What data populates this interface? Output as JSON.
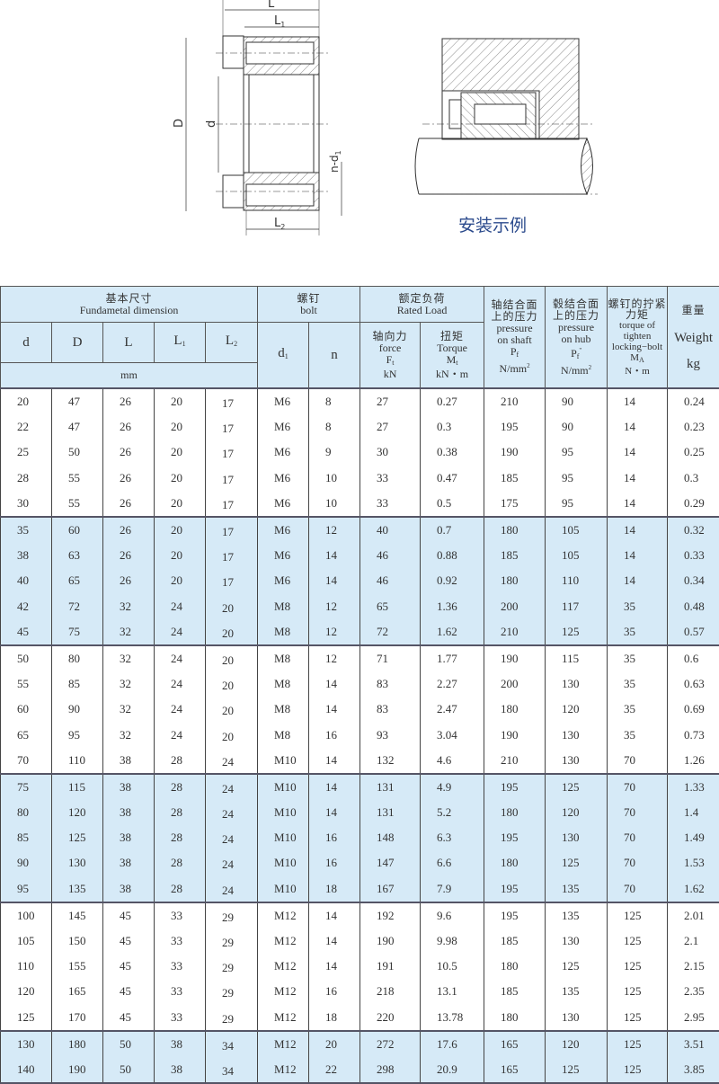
{
  "drawing": {
    "labels": {
      "L": "L",
      "L1": "L",
      "L1_sub": "1",
      "L2": "L",
      "L2_sub": "2",
      "D": "D",
      "d": "d",
      "nd1": "n-d",
      "nd1_sub": "1"
    },
    "caption": "安装示例",
    "caption_color": "#2b4a8c"
  },
  "colors": {
    "header_bg": "#d6eaf7",
    "band_bg": "#d6eaf7",
    "border": "#444444"
  },
  "table": {
    "header": {
      "fundamental_zh": "基本尺寸",
      "fundamental_en": "Fundametal dimension",
      "bolt_zh": "螺钉",
      "bolt_en": "bolt",
      "rated_zh": "额定负荷",
      "rated_en": "Rated Load",
      "cols": {
        "d": "d",
        "D": "D",
        "L": "L",
        "L1": "L",
        "L1_sub": "1",
        "L2": "L",
        "L2_sub": "2",
        "d1": "d",
        "d1_sub": "1",
        "n": "n"
      },
      "mm": "mm",
      "force": {
        "zh": "轴向力",
        "en": "force",
        "sym": "F",
        "sub": "t",
        "unit": "kN"
      },
      "torque": {
        "zh": "扭矩",
        "en": "Torque",
        "sym": "M",
        "sub": "t",
        "unit": "kN・m"
      },
      "p_shaft": {
        "zh1": "轴结合面",
        "zh2": "上的压力",
        "en1": "pressure",
        "en2": "on  shaft",
        "sym": "P",
        "sub": "f",
        "unit": "N/mm",
        "unit_sup": "2"
      },
      "p_hub": {
        "zh1": "毂结合面",
        "zh2": "上的压力",
        "en1": "pressure",
        "en2": "on hub",
        "sym": "P",
        "sub": "f",
        "sup": "''",
        "unit": "N/mm",
        "unit_sup": "2"
      },
      "bolt_torque": {
        "zh1": "螺钉的拧紧",
        "zh2": "力矩",
        "en1": "torque of",
        "en2": "tighten",
        "en3": "locking−bolt",
        "sym": "M",
        "sub": "A",
        "unit": "N・m"
      },
      "weight": {
        "zh": "重量",
        "en": "Weight",
        "unit": "kg"
      }
    },
    "groups": [
      [
        [
          "20",
          "47",
          "26",
          "20",
          "17",
          "M6",
          "8",
          "27",
          "0.27",
          "210",
          "90",
          "14",
          "0.24"
        ],
        [
          "22",
          "47",
          "26",
          "20",
          "17",
          "M6",
          "8",
          "27",
          "0.3",
          "195",
          "90",
          "14",
          "0.23"
        ],
        [
          "25",
          "50",
          "26",
          "20",
          "17",
          "M6",
          "9",
          "30",
          "0.38",
          "190",
          "95",
          "14",
          "0.25"
        ],
        [
          "28",
          "55",
          "26",
          "20",
          "17",
          "M6",
          "10",
          "33",
          "0.47",
          "185",
          "95",
          "14",
          "0.3"
        ],
        [
          "30",
          "55",
          "26",
          "20",
          "17",
          "M6",
          "10",
          "33",
          "0.5",
          "175",
          "95",
          "14",
          "0.29"
        ]
      ],
      [
        [
          "35",
          "60",
          "26",
          "20",
          "17",
          "M6",
          "12",
          "40",
          "0.7",
          "180",
          "105",
          "14",
          "0.32"
        ],
        [
          "38",
          "63",
          "26",
          "20",
          "17",
          "M6",
          "14",
          "46",
          "0.88",
          "185",
          "105",
          "14",
          "0.33"
        ],
        [
          "40",
          "65",
          "26",
          "20",
          "17",
          "M6",
          "14",
          "46",
          "0.92",
          "180",
          "110",
          "14",
          "0.34"
        ],
        [
          "42",
          "72",
          "32",
          "24",
          "20",
          "M8",
          "12",
          "65",
          "1.36",
          "200",
          "117",
          "35",
          "0.48"
        ],
        [
          "45",
          "75",
          "32",
          "24",
          "20",
          "M8",
          "12",
          "72",
          "1.62",
          "210",
          "125",
          "35",
          "0.57"
        ]
      ],
      [
        [
          "50",
          "80",
          "32",
          "24",
          "20",
          "M8",
          "12",
          "71",
          "1.77",
          "190",
          "115",
          "35",
          "0.6"
        ],
        [
          "55",
          "85",
          "32",
          "24",
          "20",
          "M8",
          "14",
          "83",
          "2.27",
          "200",
          "130",
          "35",
          "0.63"
        ],
        [
          "60",
          "90",
          "32",
          "24",
          "20",
          "M8",
          "14",
          "83",
          "2.47",
          "180",
          "120",
          "35",
          "0.69"
        ],
        [
          "65",
          "95",
          "32",
          "24",
          "20",
          "M8",
          "16",
          "93",
          "3.04",
          "190",
          "130",
          "35",
          "0.73"
        ],
        [
          "70",
          "110",
          "38",
          "28",
          "24",
          "M10",
          "14",
          "132",
          "4.6",
          "210",
          "130",
          "70",
          "1.26"
        ]
      ],
      [
        [
          "75",
          "115",
          "38",
          "28",
          "24",
          "M10",
          "14",
          "131",
          "4.9",
          "195",
          "125",
          "70",
          "1.33"
        ],
        [
          "80",
          "120",
          "38",
          "28",
          "24",
          "M10",
          "14",
          "131",
          "5.2",
          "180",
          "120",
          "70",
          "1.4"
        ],
        [
          "85",
          "125",
          "38",
          "28",
          "24",
          "M10",
          "16",
          "148",
          "6.3",
          "195",
          "130",
          "70",
          "1.49"
        ],
        [
          "90",
          "130",
          "38",
          "28",
          "24",
          "M10",
          "16",
          "147",
          "6.6",
          "180",
          "125",
          "70",
          "1.53"
        ],
        [
          "95",
          "135",
          "38",
          "28",
          "24",
          "M10",
          "18",
          "167",
          "7.9",
          "195",
          "135",
          "70",
          "1.62"
        ]
      ],
      [
        [
          "100",
          "145",
          "45",
          "33",
          "29",
          "M12",
          "14",
          "192",
          "9.6",
          "195",
          "135",
          "125",
          "2.01"
        ],
        [
          "105",
          "150",
          "45",
          "33",
          "29",
          "M12",
          "14",
          "190",
          "9.98",
          "185",
          "130",
          "125",
          "2.1"
        ],
        [
          "110",
          "155",
          "45",
          "33",
          "29",
          "M12",
          "14",
          "191",
          "10.5",
          "180",
          "125",
          "125",
          "2.15"
        ],
        [
          "120",
          "165",
          "45",
          "33",
          "29",
          "M12",
          "16",
          "218",
          "13.1",
          "185",
          "135",
          "125",
          "2.35"
        ],
        [
          "125",
          "170",
          "45",
          "33",
          "29",
          "M12",
          "18",
          "220",
          "13.78",
          "180",
          "130",
          "125",
          "2.95"
        ]
      ],
      [
        [
          "130",
          "180",
          "50",
          "38",
          "34",
          "M12",
          "20",
          "272",
          "17.6",
          "165",
          "120",
          "125",
          "3.51"
        ],
        [
          "140",
          "190",
          "50",
          "38",
          "34",
          "M12",
          "22",
          "298",
          "20.9",
          "165",
          "125",
          "125",
          "3.85"
        ]
      ]
    ]
  }
}
